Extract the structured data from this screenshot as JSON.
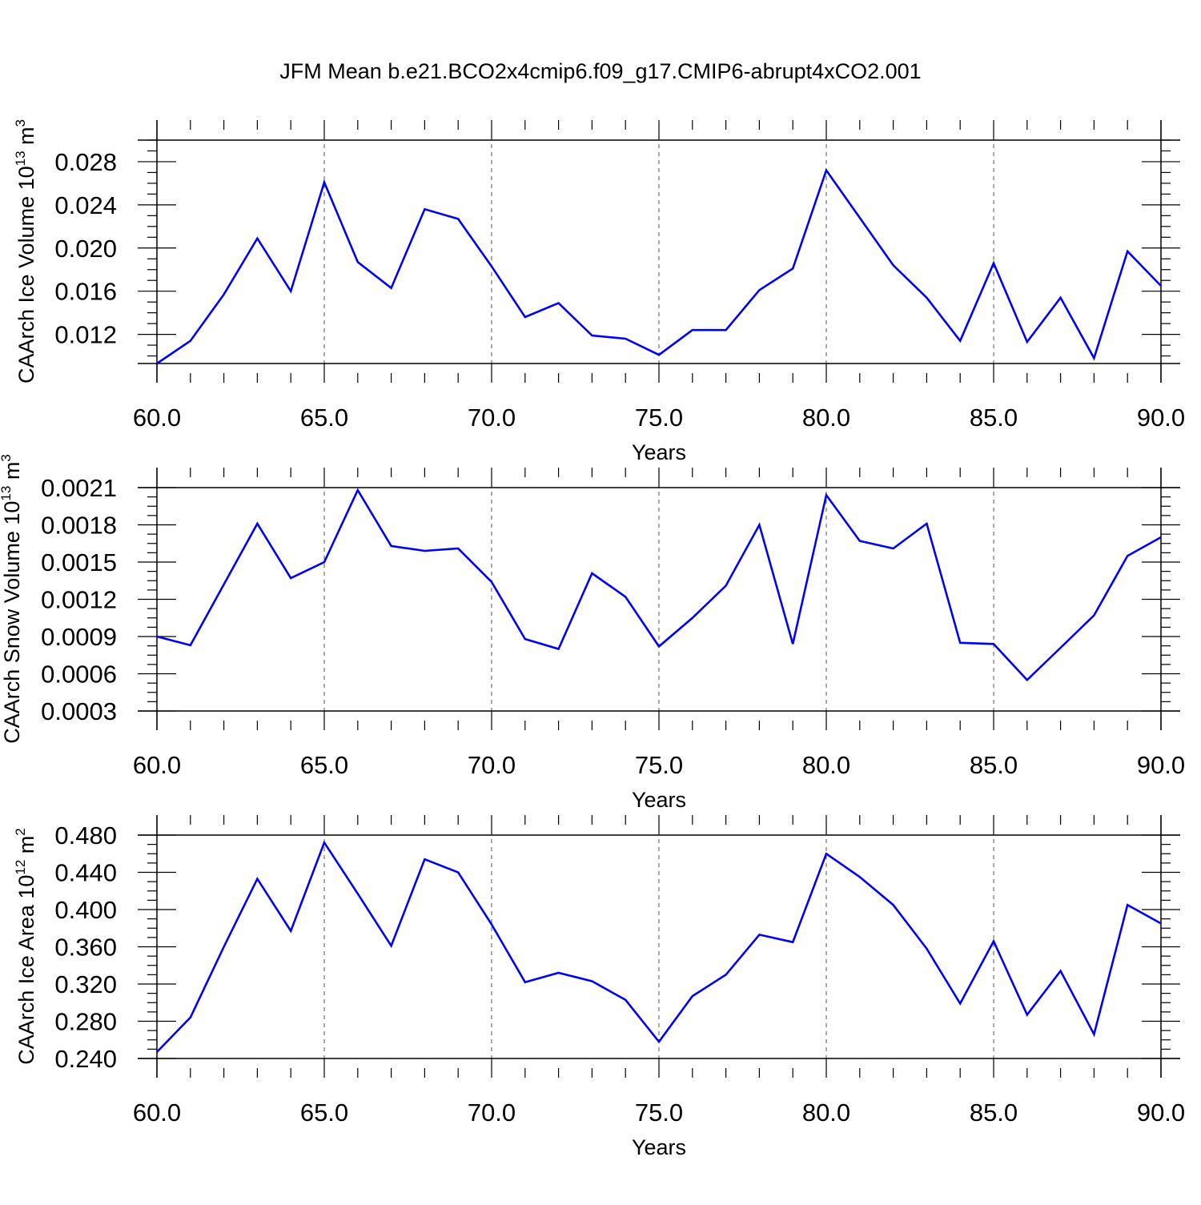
{
  "title": "JFM Mean b.e21.BCO2x4cmip6.f09_g17.CMIP6-abrupt4xCO2.001",
  "colors": {
    "series": "#0000ff",
    "axis": "#000000",
    "grid": "#555555"
  },
  "chart_data": [
    {
      "type": "line",
      "ylabel": "CAArch Ice Volume 10",
      "ylabel_exp": "13",
      "ylabel_unit": " m",
      "ylabel_unit_exp": "3",
      "xlabel": "Years",
      "xlim": [
        60,
        90
      ],
      "ylim": [
        0.0093,
        0.03
      ],
      "xticks": [
        "60.0",
        "65.0",
        "70.0",
        "75.0",
        "80.0",
        "85.0",
        "90.0"
      ],
      "yticks": [
        "0.012",
        "0.016",
        "0.020",
        "0.024",
        "0.028"
      ],
      "grid": "dashed vertical at major x ticks",
      "x": [
        60,
        61,
        62,
        63,
        64,
        65,
        66,
        67,
        68,
        69,
        70,
        71,
        72,
        73,
        74,
        75,
        76,
        77,
        78,
        79,
        80,
        81,
        82,
        83,
        84,
        85,
        86,
        87,
        88,
        89,
        90
      ],
      "y": [
        0.0093,
        0.0114,
        0.0157,
        0.0209,
        0.016,
        0.0261,
        0.0187,
        0.0163,
        0.0236,
        0.0227,
        0.0183,
        0.0136,
        0.0149,
        0.0119,
        0.0116,
        0.0101,
        0.0124,
        0.0124,
        0.0161,
        0.0181,
        0.0272,
        0.0228,
        0.0184,
        0.0154,
        0.0114,
        0.0186,
        0.0113,
        0.0154,
        0.0098,
        0.0197,
        0.0165
      ]
    },
    {
      "type": "line",
      "ylabel": "CAArch Snow Volume 10",
      "ylabel_exp": "13",
      "ylabel_unit": " m",
      "ylabel_unit_exp": "3",
      "xlabel": "Years",
      "xlim": [
        60,
        90
      ],
      "ylim": [
        0.0003,
        0.0021
      ],
      "xticks": [
        "60.0",
        "65.0",
        "70.0",
        "75.0",
        "80.0",
        "85.0",
        "90.0"
      ],
      "yticks": [
        "0.0003",
        "0.0006",
        "0.0009",
        "0.0012",
        "0.0015",
        "0.0018",
        "0.0021"
      ],
      "grid": "dashed vertical at major x ticks",
      "x": [
        60,
        61,
        62,
        63,
        64,
        65,
        66,
        67,
        68,
        69,
        70,
        71,
        72,
        73,
        74,
        75,
        76,
        77,
        78,
        79,
        80,
        81,
        82,
        83,
        84,
        85,
        86,
        87,
        88,
        89,
        90
      ],
      "y": [
        0.0009,
        0.00083,
        0.00132,
        0.00181,
        0.00137,
        0.0015,
        0.00208,
        0.00163,
        0.00159,
        0.00161,
        0.00134,
        0.00088,
        0.0008,
        0.00141,
        0.00122,
        0.00082,
        0.00105,
        0.00131,
        0.0018,
        0.00084,
        0.00204,
        0.00167,
        0.00161,
        0.00181,
        0.00085,
        0.00084,
        0.00055,
        0.00081,
        0.00107,
        0.00155,
        0.0017
      ]
    },
    {
      "type": "line",
      "ylabel": "CAArch Ice Area 10",
      "ylabel_exp": "12",
      "ylabel_unit": " m",
      "ylabel_unit_exp": "2",
      "xlabel": "Years",
      "xlim": [
        60,
        90
      ],
      "ylim": [
        0.24,
        0.48
      ],
      "xticks": [
        "60.0",
        "65.0",
        "70.0",
        "75.0",
        "80.0",
        "85.0",
        "90.0"
      ],
      "yticks": [
        "0.240",
        "0.280",
        "0.320",
        "0.360",
        "0.400",
        "0.440",
        "0.480"
      ],
      "grid": "dashed vertical at major x ticks",
      "x": [
        60,
        61,
        62,
        63,
        64,
        65,
        66,
        67,
        68,
        69,
        70,
        71,
        72,
        73,
        74,
        75,
        76,
        77,
        78,
        79,
        80,
        81,
        82,
        83,
        84,
        85,
        86,
        87,
        88,
        89,
        90
      ],
      "y": [
        0.247,
        0.284,
        0.36,
        0.433,
        0.377,
        0.472,
        0.417,
        0.361,
        0.454,
        0.44,
        0.384,
        0.322,
        0.332,
        0.323,
        0.303,
        0.258,
        0.307,
        0.33,
        0.373,
        0.365,
        0.46,
        0.435,
        0.405,
        0.358,
        0.299,
        0.366,
        0.287,
        0.334,
        0.266,
        0.405,
        0.385
      ]
    }
  ]
}
